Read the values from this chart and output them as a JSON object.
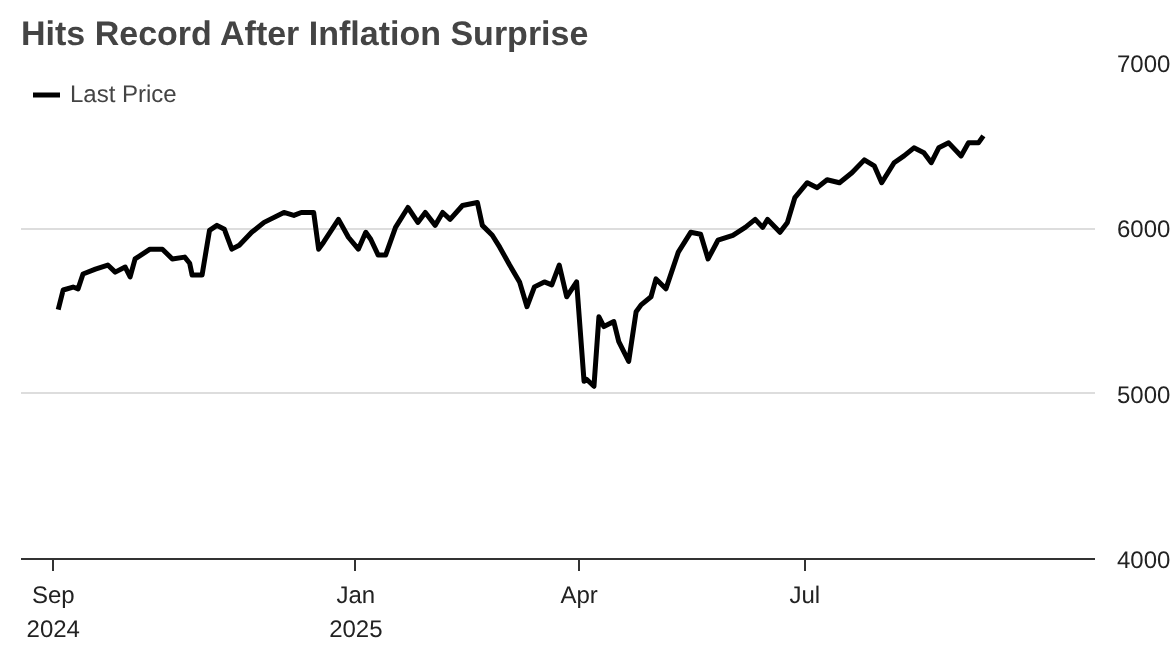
{
  "chart_data": {
    "type": "line",
    "title": "Hits Record After Inflation Surprise",
    "x": [
      "2024-09-03",
      "2024-09-05",
      "2024-09-09",
      "2024-09-11",
      "2024-09-13",
      "2024-09-18",
      "2024-09-23",
      "2024-09-26",
      "2024-09-30",
      "2024-10-02",
      "2024-10-04",
      "2024-10-10",
      "2024-10-15",
      "2024-10-19",
      "2024-10-24",
      "2024-10-26",
      "2024-10-27",
      "2024-10-31",
      "2024-11-03",
      "2024-11-06",
      "2024-11-09",
      "2024-11-12",
      "2024-11-15",
      "2024-11-20",
      "2024-11-25",
      "2024-12-03",
      "2024-12-07",
      "2024-12-10",
      "2024-12-15",
      "2024-12-17",
      "2024-12-19",
      "2024-12-25",
      "2024-12-29",
      "2025-01-02",
      "2025-01-05",
      "2025-01-07",
      "2025-01-10",
      "2025-01-13",
      "2025-01-17",
      "2025-01-22",
      "2025-01-26",
      "2025-01-29",
      "2025-02-02",
      "2025-02-05",
      "2025-02-08",
      "2025-02-13",
      "2025-02-19",
      "2025-02-21",
      "2025-02-25",
      "2025-02-28",
      "2025-03-04",
      "2025-03-08",
      "2025-03-11",
      "2025-03-14",
      "2025-03-18",
      "2025-03-21",
      "2025-03-24",
      "2025-03-27",
      "2025-03-31",
      "2025-04-03",
      "2025-04-04",
      "2025-04-07",
      "2025-04-09",
      "2025-04-11",
      "2025-04-15",
      "2025-04-17",
      "2025-04-21",
      "2025-04-24",
      "2025-04-26",
      "2025-04-30",
      "2025-05-02",
      "2025-05-06",
      "2025-05-11",
      "2025-05-16",
      "2025-05-20",
      "2025-05-23",
      "2025-05-27",
      "2025-06-02",
      "2025-06-07",
      "2025-06-11",
      "2025-06-14",
      "2025-06-16",
      "2025-06-21",
      "2025-06-24",
      "2025-06-27",
      "2025-07-02",
      "2025-07-06",
      "2025-07-10",
      "2025-07-15",
      "2025-07-20",
      "2025-07-25",
      "2025-07-29",
      "2025-08-01",
      "2025-08-06",
      "2025-08-10",
      "2025-08-14",
      "2025-08-18",
      "2025-08-21",
      "2025-08-24",
      "2025-08-28",
      "2025-09-02",
      "2025-09-05",
      "2025-09-09",
      "2025-09-11"
    ],
    "series": [
      {
        "name": "Last Price",
        "color": "#000000",
        "values": [
          5508,
          5627,
          5645,
          5634,
          5724,
          5753,
          5778,
          5735,
          5766,
          5706,
          5815,
          5874,
          5874,
          5815,
          5826,
          5789,
          5717,
          5717,
          5988,
          6018,
          5994,
          5874,
          5898,
          5976,
          6036,
          6096,
          6078,
          6096,
          6096,
          5874,
          5916,
          6054,
          5946,
          5874,
          5976,
          5934,
          5838,
          5838,
          6006,
          6126,
          6036,
          6096,
          6018,
          6096,
          6054,
          6138,
          6156,
          6018,
          5958,
          5886,
          5778,
          5676,
          5526,
          5646,
          5676,
          5658,
          5778,
          5586,
          5676,
          5075,
          5087,
          5045,
          5465,
          5406,
          5436,
          5315,
          5195,
          5496,
          5537,
          5586,
          5694,
          5634,
          5856,
          5976,
          5964,
          5815,
          5928,
          5958,
          6006,
          6054,
          6006,
          6054,
          5976,
          6036,
          6186,
          6276,
          6246,
          6294,
          6276,
          6336,
          6414,
          6378,
          6276,
          6397,
          6438,
          6487,
          6457,
          6397,
          6487,
          6517,
          6438,
          6517,
          6517,
          6559
        ]
      }
    ],
    "xlim": [
      "2024-08-19",
      "2025-10-26"
    ],
    "xticks": [
      {
        "value": "2024-09-01",
        "label": "Sep\n2024"
      },
      {
        "value": "2025-01-01",
        "label": "Jan\n2025"
      },
      {
        "value": "2025-04-01",
        "label": "Apr"
      },
      {
        "value": "2025-07-01",
        "label": "Jul"
      }
    ],
    "ylim": [
      4000,
      7000
    ],
    "yticks": [
      4000,
      5000,
      6000,
      7000
    ],
    "grid": "y",
    "legend": "top left",
    "line_style": "solid"
  }
}
